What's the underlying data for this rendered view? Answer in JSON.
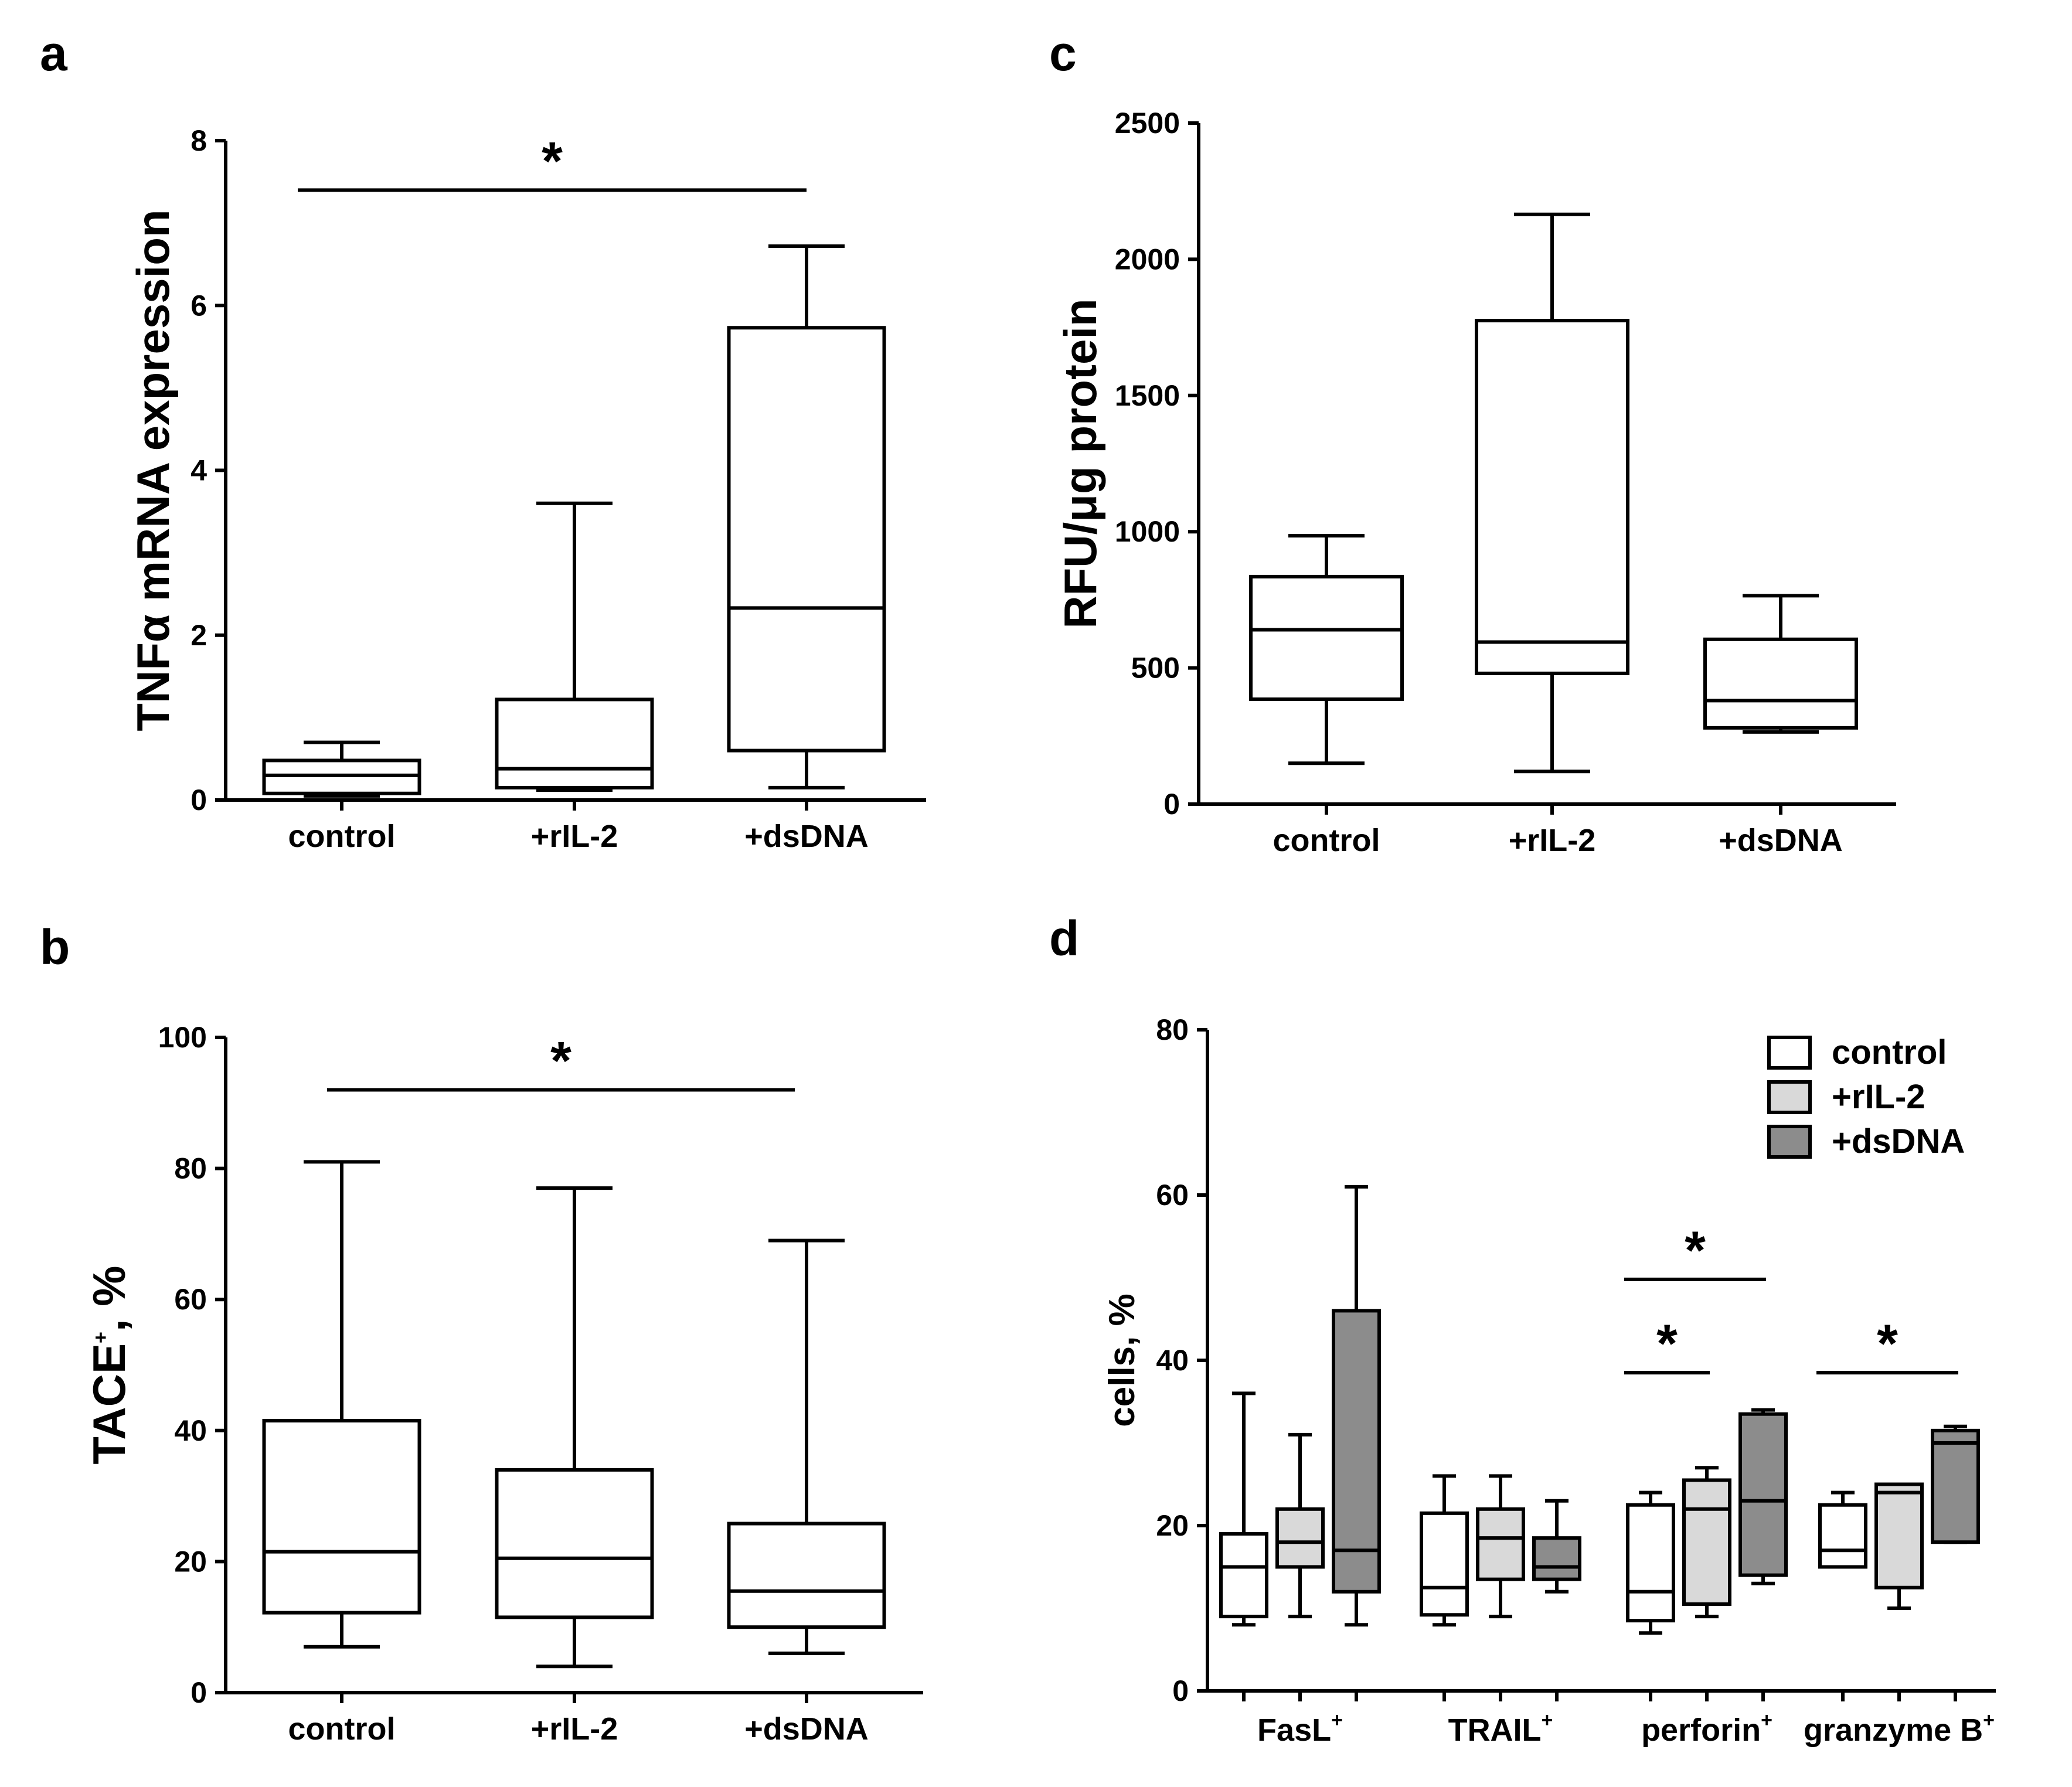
{
  "panels": {
    "a": "a",
    "b": "b",
    "c": "c",
    "d": "d"
  },
  "colors": {
    "control": "#ffffff",
    "+rIL-2": "#d9d9d9",
    "+dsDNA": "#8c8c8c",
    "stroke": "#000000"
  },
  "chart_data": [
    {
      "panel": "a",
      "type": "box",
      "ylabel": "TNFα mRNA expression",
      "ylim": [
        0,
        8
      ],
      "yticks": [
        0,
        2,
        4,
        6,
        8
      ],
      "categories": [
        "control",
        "+rIL-2",
        "+dsDNA"
      ],
      "boxes": [
        {
          "category": "control",
          "min": 0.05,
          "q1": 0.08,
          "median": 0.3,
          "q3": 0.48,
          "max": 0.7
        },
        {
          "category": "+rIL-2",
          "min": 0.12,
          "q1": 0.15,
          "median": 0.38,
          "q3": 1.22,
          "max": 3.6
        },
        {
          "category": "+dsDNA",
          "min": 0.15,
          "q1": 0.6,
          "median": 2.33,
          "q3": 5.73,
          "max": 6.72
        }
      ],
      "significance": [
        {
          "from": "control",
          "to": "+dsDNA",
          "y": 7.4,
          "label": "*"
        }
      ]
    },
    {
      "panel": "b",
      "type": "box",
      "ylabel": "TACE⁺, %",
      "ylim": [
        0,
        100
      ],
      "yticks": [
        0,
        20,
        40,
        60,
        80,
        100
      ],
      "categories": [
        "control",
        "+rIL-2",
        "+dsDNA"
      ],
      "boxes": [
        {
          "category": "control",
          "min": 7,
          "q1": 12.2,
          "median": 21.5,
          "q3": 41.5,
          "max": 81
        },
        {
          "category": "+rIL-2",
          "min": 4,
          "q1": 11.5,
          "median": 20.5,
          "q3": 34,
          "max": 77
        },
        {
          "category": "+dsDNA",
          "min": 6,
          "q1": 10,
          "median": 15.5,
          "q3": 25.8,
          "max": 69
        }
      ],
      "significance": [
        {
          "from": "control",
          "to": "+dsDNA",
          "y": 92,
          "label": "*"
        }
      ]
    },
    {
      "panel": "c",
      "type": "box",
      "ylabel": "RFU/μg protein",
      "ylim": [
        0,
        2500
      ],
      "yticks": [
        0,
        500,
        1000,
        1500,
        2000,
        2500
      ],
      "categories": [
        "control",
        "+rIL-2",
        "+dsDNA"
      ],
      "boxes": [
        {
          "category": "control",
          "min": 150,
          "q1": 385,
          "median": 640,
          "q3": 835,
          "max": 985
        },
        {
          "category": "+rIL-2",
          "min": 120,
          "q1": 480,
          "median": 595,
          "q3": 1775,
          "max": 2165
        },
        {
          "category": "+dsDNA",
          "min": 265,
          "q1": 280,
          "median": 380,
          "q3": 605,
          "max": 765
        }
      ],
      "significance": []
    },
    {
      "panel": "d",
      "type": "box",
      "ylabel": "cells, %",
      "ylim": [
        0,
        80
      ],
      "yticks": [
        0,
        20,
        40,
        60,
        80
      ],
      "groups": [
        "FasL",
        "TRAIL",
        "perforin",
        "granzyme B"
      ],
      "group_sup": "+",
      "series": [
        {
          "name": "control",
          "boxes": [
            {
              "group": "FasL",
              "min": 8,
              "q1": 9,
              "median": 15,
              "q3": 19,
              "max": 36
            },
            {
              "group": "TRAIL",
              "min": 8,
              "q1": 9.2,
              "median": 12.5,
              "q3": 21.5,
              "max": 26
            },
            {
              "group": "perforin",
              "min": 7,
              "q1": 8.5,
              "median": 12,
              "q3": 22.5,
              "max": 24
            },
            {
              "group": "granzyme B",
              "min": 15,
              "q1": 15,
              "median": 17,
              "q3": 22.5,
              "max": 24
            }
          ]
        },
        {
          "name": "+rIL-2",
          "boxes": [
            {
              "group": "FasL",
              "min": 9,
              "q1": 15,
              "median": 18,
              "q3": 22,
              "max": 31
            },
            {
              "group": "TRAIL",
              "min": 9,
              "q1": 13.5,
              "median": 18.5,
              "q3": 22,
              "max": 26
            },
            {
              "group": "perforin",
              "min": 9,
              "q1": 10.5,
              "median": 22,
              "q3": 25.5,
              "max": 27
            },
            {
              "group": "granzyme B",
              "min": 10,
              "q1": 12.5,
              "median": 24,
              "q3": 25,
              "max": 25
            }
          ]
        },
        {
          "name": "+dsDNA",
          "boxes": [
            {
              "group": "FasL",
              "min": 8,
              "q1": 12,
              "median": 17,
              "q3": 46,
              "max": 61
            },
            {
              "group": "TRAIL",
              "min": 12,
              "q1": 13.5,
              "median": 15,
              "q3": 18.5,
              "max": 23
            },
            {
              "group": "perforin",
              "min": 13,
              "q1": 14,
              "median": 23,
              "q3": 33.5,
              "max": 34
            },
            {
              "group": "granzyme B",
              "min": 18,
              "q1": 18,
              "median": 30,
              "q3": 31.5,
              "max": 32
            }
          ]
        }
      ],
      "significance": [
        {
          "group": "perforin",
          "from": "control",
          "to": "+dsDNA",
          "y": 49.8,
          "label": "*"
        },
        {
          "group": "perforin",
          "from": "control",
          "to": "+rIL-2",
          "y": 38.5,
          "label": "*"
        },
        {
          "group": "granzyme B",
          "from": "control",
          "to": "+dsDNA",
          "y": 38.5,
          "label": "*"
        }
      ],
      "legend": {
        "placement": "top-right",
        "entries": [
          "control",
          "+rIL-2",
          "+dsDNA"
        ]
      }
    }
  ]
}
